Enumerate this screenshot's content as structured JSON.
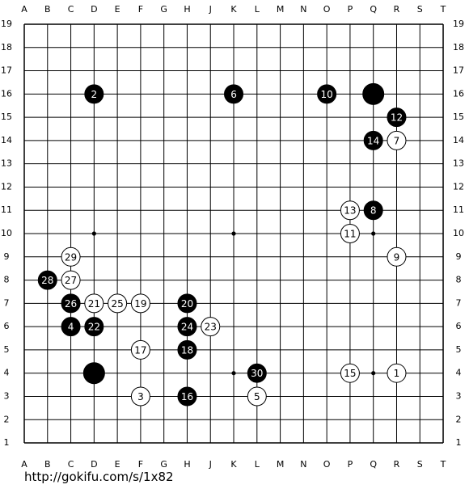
{
  "columns": [
    "A",
    "B",
    "C",
    "D",
    "E",
    "F",
    "G",
    "H",
    "J",
    "K",
    "L",
    "M",
    "N",
    "O",
    "P",
    "Q",
    "R",
    "S",
    "T"
  ],
  "rows": [
    19,
    18,
    17,
    16,
    15,
    14,
    13,
    12,
    11,
    10,
    9,
    8,
    7,
    6,
    5,
    4,
    3,
    2,
    1
  ],
  "stones": [
    {
      "color": "black",
      "point": "D16",
      "label": "2"
    },
    {
      "color": "black",
      "point": "K16",
      "label": "6"
    },
    {
      "color": "black",
      "point": "O16",
      "label": "10"
    },
    {
      "color": "black",
      "point": "Q16"
    },
    {
      "color": "black",
      "point": "R15",
      "label": "12"
    },
    {
      "color": "black",
      "point": "Q14",
      "label": "14"
    },
    {
      "color": "white",
      "point": "R14",
      "label": "7"
    },
    {
      "color": "white",
      "point": "P11",
      "label": "13"
    },
    {
      "color": "black",
      "point": "Q11",
      "label": "8"
    },
    {
      "color": "white",
      "point": "P10",
      "label": "11"
    },
    {
      "color": "white",
      "point": "C9",
      "label": "29"
    },
    {
      "color": "white",
      "point": "R9",
      "label": "9"
    },
    {
      "color": "black",
      "point": "B8",
      "label": "28"
    },
    {
      "color": "white",
      "point": "C8",
      "label": "27"
    },
    {
      "color": "black",
      "point": "C7",
      "label": "26"
    },
    {
      "color": "white",
      "point": "D7",
      "label": "21"
    },
    {
      "color": "white",
      "point": "E7",
      "label": "25"
    },
    {
      "color": "white",
      "point": "F7",
      "label": "19"
    },
    {
      "color": "black",
      "point": "H7",
      "label": "20"
    },
    {
      "color": "black",
      "point": "C6",
      "label": "4"
    },
    {
      "color": "black",
      "point": "D6",
      "label": "22"
    },
    {
      "color": "black",
      "point": "H6",
      "label": "24"
    },
    {
      "color": "white",
      "point": "J6",
      "label": "23"
    },
    {
      "color": "white",
      "point": "F5",
      "label": "17"
    },
    {
      "color": "black",
      "point": "H5",
      "label": "18"
    },
    {
      "color": "black",
      "point": "D4"
    },
    {
      "color": "black",
      "point": "L4",
      "label": "30"
    },
    {
      "color": "white",
      "point": "P4",
      "label": "15"
    },
    {
      "color": "white",
      "point": "R4",
      "label": "1"
    },
    {
      "color": "white",
      "point": "F3",
      "label": "3"
    },
    {
      "color": "black",
      "point": "H3",
      "label": "16"
    },
    {
      "color": "white",
      "point": "L3",
      "label": "5"
    }
  ],
  "url": "http://gokifu.com/s/1x82"
}
